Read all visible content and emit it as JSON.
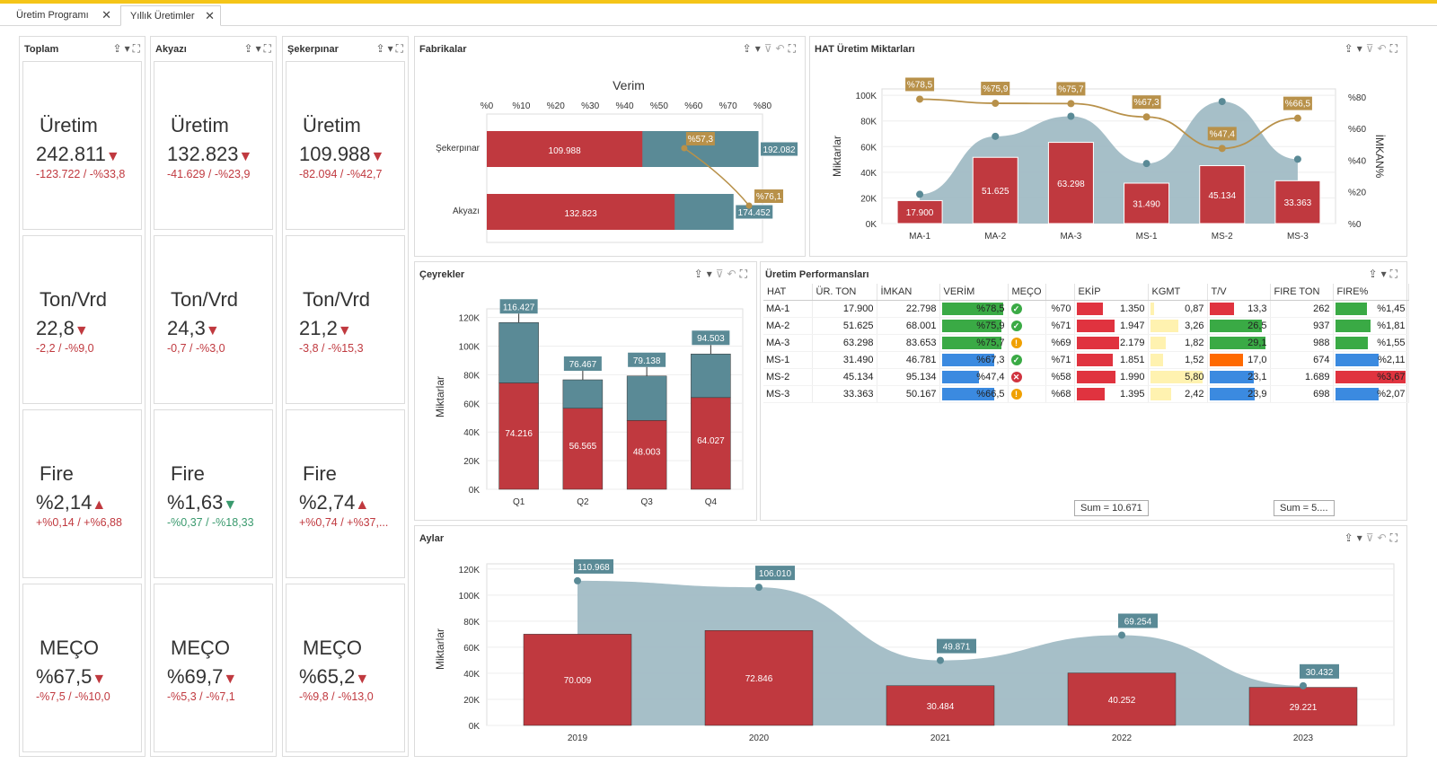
{
  "tabs": [
    {
      "label": "Üretim Programı"
    },
    {
      "label": "Yıllık Üretimler"
    }
  ],
  "cards": [
    {
      "title": "Toplam",
      "items": [
        {
          "label": "Üretim",
          "value": "242.811",
          "trend": "down",
          "delta": "-123.722 / -%33,8",
          "tone": "red"
        },
        {
          "label": "Ton/Vrd",
          "value": "22,8",
          "trend": "down",
          "delta": "-2,2 / -%9,0",
          "tone": "red"
        },
        {
          "label": "Fire",
          "value": "%2,14",
          "trend": "up",
          "delta": "+%0,14 / +%6,88",
          "tone": "red"
        },
        {
          "label": "MEÇO",
          "value": "%67,5",
          "trend": "down",
          "delta": "-%7,5 / -%10,0",
          "tone": "red"
        }
      ]
    },
    {
      "title": "Akyazı",
      "items": [
        {
          "label": "Üretim",
          "value": "132.823",
          "trend": "down",
          "delta": "-41.629 / -%23,9",
          "tone": "red"
        },
        {
          "label": "Ton/Vrd",
          "value": "24,3",
          "trend": "down",
          "delta": "-0,7 / -%3,0",
          "tone": "red"
        },
        {
          "label": "Fire",
          "value": "%1,63",
          "trend": "down-good",
          "delta": "-%0,37 / -%18,33",
          "tone": "green"
        },
        {
          "label": "MEÇO",
          "value": "%69,7",
          "trend": "down",
          "delta": "-%5,3 / -%7,1",
          "tone": "red"
        }
      ]
    },
    {
      "title": "Şekerpınar",
      "items": [
        {
          "label": "Üretim",
          "value": "109.988",
          "trend": "down",
          "delta": "-82.094 / -%42,7",
          "tone": "red"
        },
        {
          "label": "Ton/Vrd",
          "value": "21,2",
          "trend": "down",
          "delta": "-3,8 / -%15,3",
          "tone": "red"
        },
        {
          "label": "Fire",
          "value": "%2,74",
          "trend": "up",
          "delta": "+%0,74 / +%37,...",
          "tone": "red"
        },
        {
          "label": "MEÇO",
          "value": "%65,2",
          "trend": "down",
          "delta": "-%9,8 / -%13,0",
          "tone": "red"
        }
      ]
    }
  ],
  "panels": {
    "fabrikalar": "Fabrikalar",
    "hat": "HAT Üretim Miktarları",
    "ceyrekler": "Çeyrekler",
    "perf": "Üretim Performansları",
    "aylar": "Aylar"
  },
  "colors": {
    "red": "#c0393f",
    "teal": "#5a8a96",
    "gold": "#b8914a",
    "area": "#9cb8c2"
  },
  "chart_data": [
    {
      "id": "fabrikalar",
      "type": "bar",
      "orientation": "horizontal",
      "title": "Verim",
      "categories": [
        "Şekerpınar",
        "Akyazı"
      ],
      "x_ticks": [
        "%0",
        "%10",
        "%20",
        "%30",
        "%40",
        "%50",
        "%60",
        "%70",
        "%80"
      ],
      "series": [
        {
          "values": [
            109988,
            132823
          ],
          "labels": [
            "109.988",
            "132.823"
          ]
        },
        {
          "values": [
            192082,
            174452
          ],
          "labels": [
            "192.082",
            "174.452"
          ]
        }
      ],
      "verim": [
        57.3,
        76.1
      ],
      "verim_labels": [
        "%57,3",
        "%76,1"
      ]
    },
    {
      "id": "hat",
      "type": "bar",
      "ylabel": "Miktarlar",
      "y2label": "İMKAN%",
      "categories": [
        "MA-1",
        "MA-2",
        "MA-3",
        "MS-1",
        "MS-2",
        "MS-3"
      ],
      "y_ticks": [
        "0K",
        "20K",
        "40K",
        "60K",
        "80K",
        "100K"
      ],
      "y2_ticks": [
        "%0",
        "%20",
        "%40",
        "%60",
        "%80"
      ],
      "bars": [
        17900,
        51625,
        63298,
        31490,
        45134,
        33363
      ],
      "bar_labels": [
        "17.900",
        "51.625",
        "63.298",
        "31.490",
        "45.134",
        "33.363"
      ],
      "area": [
        22798,
        68001,
        83653,
        46781,
        95134,
        50167
      ],
      "line": [
        78.5,
        75.9,
        75.7,
        67.3,
        47.4,
        66.5
      ],
      "line_labels": [
        "%78,5",
        "%75,9",
        "%75,7",
        "%67,3",
        "%47,4",
        "%66,5"
      ]
    },
    {
      "id": "ceyrekler",
      "type": "bar",
      "stacked": true,
      "ylabel": "Miktarlar",
      "categories": [
        "Q1",
        "Q2",
        "Q3",
        "Q4"
      ],
      "y_ticks": [
        "0K",
        "20K",
        "40K",
        "60K",
        "80K",
        "100K",
        "120K"
      ],
      "bottom": [
        74216,
        56565,
        48003,
        64027
      ],
      "bottom_labels": [
        "74.216",
        "56.565",
        "48.003",
        "64.027"
      ],
      "total": [
        116427,
        76467,
        79138,
        94503
      ],
      "total_labels": [
        "116.427",
        "76.467",
        "79.138",
        "94.503"
      ]
    },
    {
      "id": "aylar",
      "type": "bar",
      "ylabel": "Miktarlar",
      "categories": [
        "2019",
        "2020",
        "2021",
        "2022",
        "2023"
      ],
      "y_ticks": [
        "0K",
        "20K",
        "40K",
        "60K",
        "80K",
        "100K",
        "120K"
      ],
      "bars": [
        70009,
        72846,
        30484,
        40252,
        29221
      ],
      "bar_labels": [
        "70.009",
        "72.846",
        "30.484",
        "40.252",
        "29.221"
      ],
      "area": [
        110968,
        106010,
        49871,
        69254,
        30432
      ],
      "area_labels": [
        "110.968",
        "106.010",
        "49.871",
        "69.254",
        "30.432"
      ]
    }
  ],
  "perf": {
    "headers": [
      "HAT",
      "ÜR. TON",
      "İMKAN",
      "VERİM",
      "MEÇO",
      "",
      "EKİP",
      "KGMT",
      "T/V",
      "FIRE TON",
      "FIRE%"
    ],
    "rows": [
      {
        "hat": "MA-1",
        "ton": "17.900",
        "imkan": "22.798",
        "verim": "%78,5",
        "vp": 78.5,
        "meco_ico": "ok",
        "meco": "%70",
        "ekip": "1.350",
        "ep": 0.62,
        "kgmt": "0,87",
        "kp": 0.05,
        "tv": "13,3",
        "tvp": 0.45,
        "tvc": "#e0333f",
        "firet": "262",
        "fire": "%1,45",
        "fp": 0.45,
        "fc": "#3aaa45"
      },
      {
        "hat": "MA-2",
        "ton": "51.625",
        "imkan": "68.001",
        "verim": "%75,9",
        "vp": 75.9,
        "meco_ico": "ok",
        "meco": "%71",
        "ekip": "1.947",
        "ep": 0.88,
        "kgmt": "3,26",
        "kp": 0.55,
        "tv": "26,5",
        "tvp": 0.95,
        "tvc": "#3aaa45",
        "firet": "937",
        "fire": "%1,81",
        "fp": 0.5,
        "fc": "#3aaa45"
      },
      {
        "hat": "MA-3",
        "ton": "63.298",
        "imkan": "83.653",
        "verim": "%75,7",
        "vp": 75.7,
        "meco_ico": "warn",
        "meco": "%69",
        "ekip": "2.179",
        "ep": 0.98,
        "kgmt": "1,82",
        "kp": 0.3,
        "tv": "29,1",
        "tvp": 1.0,
        "tvc": "#3aaa45",
        "firet": "988",
        "fire": "%1,55",
        "fp": 0.47,
        "fc": "#3aaa45"
      },
      {
        "hat": "MS-1",
        "ton": "31.490",
        "imkan": "46.781",
        "verim": "%67,3",
        "vp": 67.3,
        "meco_ico": "ok",
        "meco": "%71",
        "ekip": "1.851",
        "ep": 0.84,
        "kgmt": "1,52",
        "kp": 0.25,
        "tv": "17,0",
        "tvp": 0.6,
        "tvc": "#ff6a00",
        "firet": "674",
        "fire": "%2,11",
        "fp": 0.62,
        "fc": "#3b8ae0"
      },
      {
        "hat": "MS-2",
        "ton": "45.134",
        "imkan": "95.134",
        "verim": "%47,4",
        "vp": 47.4,
        "meco_ico": "err",
        "meco": "%58",
        "ekip": "1.990",
        "ep": 0.9,
        "kgmt": "5,80",
        "kp": 1.0,
        "tv": "23,1",
        "tvp": 0.8,
        "tvc": "#3b8ae0",
        "firet": "1.689",
        "fire": "%3,67",
        "fp": 1.0,
        "fc": "#e0333f"
      },
      {
        "hat": "MS-3",
        "ton": "33.363",
        "imkan": "50.167",
        "verim": "%66,5",
        "vp": 66.5,
        "meco_ico": "warn",
        "meco": "%68",
        "ekip": "1.395",
        "ep": 0.66,
        "kgmt": "2,42",
        "kp": 0.4,
        "tv": "23,9",
        "tvp": 0.82,
        "tvc": "#3b8ae0",
        "firet": "698",
        "fire": "%2,07",
        "fp": 0.62,
        "fc": "#3b8ae0"
      }
    ],
    "sums": [
      "Sum = 10.671",
      "Sum = 5...."
    ]
  }
}
